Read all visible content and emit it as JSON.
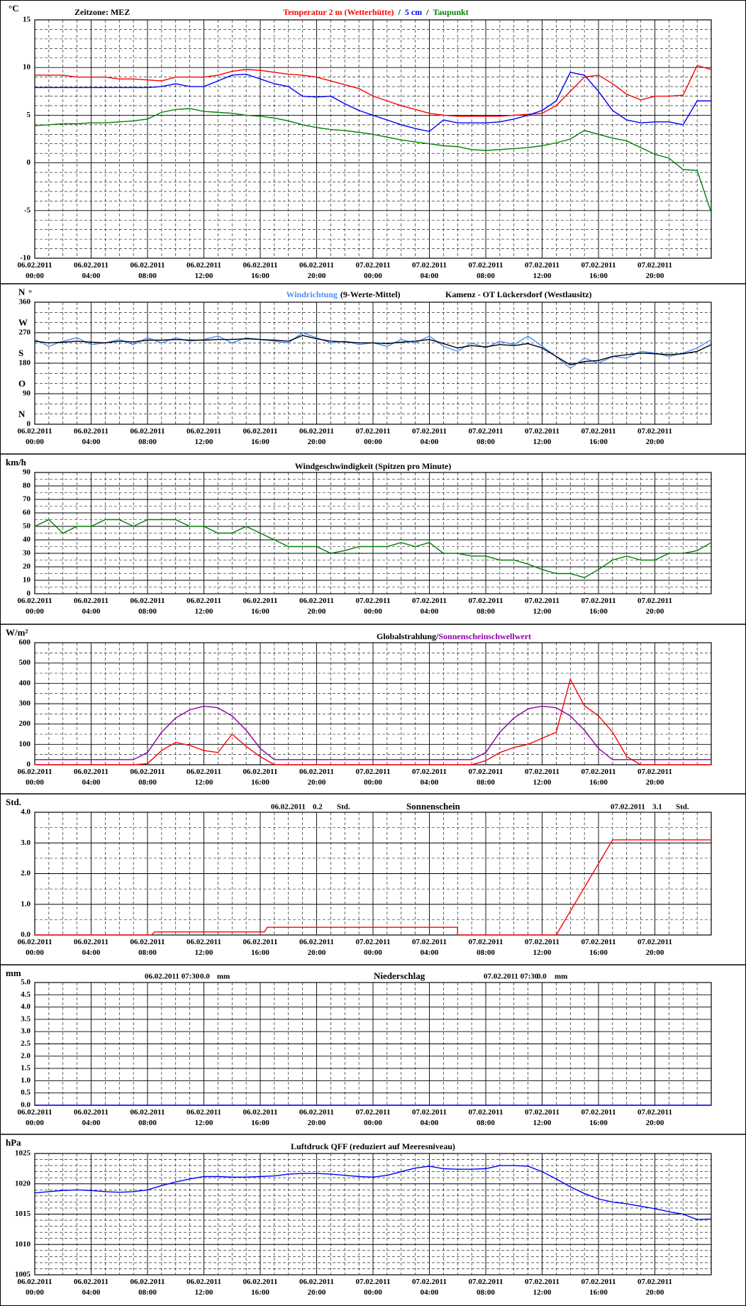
{
  "time_axis": {
    "xlim": [
      0,
      48
    ],
    "xticks": [
      {
        "value": 0,
        "label": "06.02.2011\n00:00"
      },
      {
        "value": 4,
        "label": "06.02.2011\n04:00"
      },
      {
        "value": 8,
        "label": "06.02.2011\n08:00"
      },
      {
        "value": 12,
        "label": "06.02.2011\n12:00"
      },
      {
        "value": 16,
        "label": "06.02.2011\n16:00"
      },
      {
        "value": 20,
        "label": "06.02.2011\n20:00"
      },
      {
        "value": 24,
        "label": "07.02.2011\n00:00"
      },
      {
        "value": 28,
        "label": "07.02.2011\n04:00"
      },
      {
        "value": 32,
        "label": "07.02.2011\n08:00"
      },
      {
        "value": 36,
        "label": "07.02.2011\n12:00"
      },
      {
        "value": 40,
        "label": "07.02.2011\n16:00"
      },
      {
        "value": 44,
        "label": "07.02.2011\n20:00"
      }
    ],
    "xminor": [
      1,
      2,
      3,
      5,
      6,
      7,
      9,
      10,
      11,
      13,
      14,
      15,
      17,
      18,
      19,
      21,
      22,
      23,
      25,
      26,
      27,
      29,
      30,
      31,
      33,
      34,
      35,
      37,
      38,
      39,
      41,
      42,
      43,
      45,
      46,
      47,
      48
    ]
  },
  "chart_data": [
    {
      "type": "line",
      "unit": "°C",
      "annotations": [
        "Zeitzone: MEZ"
      ],
      "separator": "/",
      "ylim": [
        -10,
        15
      ],
      "yticks": [
        -10,
        -5,
        0,
        5,
        10,
        15
      ],
      "yminor": [
        -9,
        -8,
        -7,
        -6,
        -4,
        -3,
        -2,
        -1,
        1,
        2,
        3,
        4,
        6,
        7,
        8,
        9,
        11,
        12,
        13,
        14
      ],
      "x": [
        0,
        1,
        2,
        3,
        4,
        5,
        6,
        7,
        8,
        9,
        10,
        11,
        12,
        13,
        14,
        15,
        16,
        17,
        18,
        19,
        20,
        21,
        22,
        23,
        24,
        25,
        26,
        27,
        28,
        29,
        30,
        31,
        32,
        33,
        34,
        35,
        36,
        37,
        38,
        39,
        40,
        41,
        42,
        43,
        44,
        45,
        46,
        47,
        48
      ],
      "series": [
        {
          "name": "Temperatur 2 m (Wetterhütte)",
          "color": "#ff0000",
          "values": [
            9.2,
            9.2,
            9.2,
            9.0,
            9.0,
            9.0,
            8.8,
            8.8,
            8.7,
            8.6,
            9.0,
            9.0,
            9.0,
            9.2,
            9.6,
            9.8,
            9.7,
            9.5,
            9.3,
            9.2,
            9.0,
            8.6,
            8.2,
            7.8,
            7.0,
            6.5,
            6.0,
            5.6,
            5.2,
            5.0,
            4.9,
            4.9,
            4.9,
            4.9,
            5.0,
            5.1,
            5.2,
            6.0,
            7.5,
            9.0,
            9.2,
            8.3,
            7.2,
            6.6,
            7.0,
            7.0,
            7.1,
            10.2,
            9.8
          ]
        },
        {
          "name": "5 cm",
          "color": "#0000ff",
          "values": [
            7.9,
            7.9,
            7.9,
            7.9,
            7.9,
            7.9,
            7.9,
            7.9,
            7.9,
            8.0,
            8.3,
            8.0,
            8.0,
            8.6,
            9.2,
            9.3,
            8.8,
            8.3,
            8.0,
            7.0,
            6.9,
            7.0,
            6.2,
            5.5,
            5.0,
            4.5,
            4.0,
            3.6,
            3.3,
            4.5,
            4.2,
            4.2,
            4.2,
            4.3,
            4.6,
            5.0,
            5.5,
            6.5,
            9.5,
            9.2,
            7.5,
            5.5,
            4.5,
            4.2,
            4.3,
            4.3,
            4.0,
            6.5,
            6.5
          ]
        },
        {
          "name": "Taupunkt",
          "color": "#008000",
          "values": [
            3.9,
            4.0,
            4.1,
            4.1,
            4.2,
            4.2,
            4.3,
            4.4,
            4.6,
            5.3,
            5.6,
            5.7,
            5.4,
            5.3,
            5.2,
            5.0,
            4.9,
            4.7,
            4.4,
            4.0,
            3.7,
            3.5,
            3.4,
            3.2,
            3.0,
            2.7,
            2.4,
            2.2,
            2.0,
            1.8,
            1.7,
            1.4,
            1.3,
            1.4,
            1.5,
            1.6,
            1.8,
            2.1,
            2.5,
            3.4,
            3.0,
            2.6,
            2.3,
            1.6,
            0.9,
            0.5,
            -0.7,
            -0.8,
            -5.2
          ]
        }
      ]
    },
    {
      "type": "line",
      "unit": "°",
      "annotations": [
        "Kamenz - OT Lückersdorf (Westlausitz)"
      ],
      "ylim": [
        0,
        360
      ],
      "yticks": [
        0,
        90,
        180,
        270,
        360
      ],
      "yminor": [
        30,
        60,
        120,
        150,
        210,
        240,
        300,
        330
      ],
      "compass": [
        {
          "value": 0,
          "label": "N"
        },
        {
          "value": 90,
          "label": "O"
        },
        {
          "value": 180,
          "label": "S"
        },
        {
          "value": 270,
          "label": "W"
        },
        {
          "value": 360,
          "label": "N"
        }
      ],
      "x": [
        0,
        1,
        2,
        3,
        4,
        5,
        6,
        7,
        8,
        9,
        10,
        11,
        12,
        13,
        14,
        15,
        16,
        17,
        18,
        19,
        20,
        21,
        22,
        23,
        24,
        25,
        26,
        27,
        28,
        29,
        30,
        31,
        32,
        33,
        34,
        35,
        36,
        37,
        38,
        39,
        40,
        41,
        42,
        43,
        44,
        45,
        46,
        47,
        48
      ],
      "series": [
        {
          "name": "Windrichtung",
          "color": "#4a8cff",
          "values": [
            250,
            230,
            245,
            255,
            235,
            240,
            250,
            235,
            255,
            240,
            255,
            245,
            250,
            260,
            240,
            255,
            250,
            245,
            240,
            270,
            255,
            240,
            245,
            235,
            240,
            230,
            250,
            240,
            260,
            230,
            215,
            240,
            225,
            245,
            235,
            260,
            230,
            200,
            165,
            195,
            180,
            200,
            195,
            215,
            210,
            200,
            210,
            225,
            250
          ]
        },
        {
          "name": "(9-Werte-Mittel)",
          "color": "#000000",
          "values": [
            245,
            240,
            242,
            245,
            242,
            240,
            245,
            243,
            248,
            248,
            250,
            248,
            248,
            250,
            250,
            252,
            250,
            248,
            245,
            262,
            252,
            245,
            243,
            240,
            240,
            238,
            242,
            245,
            250,
            238,
            225,
            232,
            228,
            235,
            232,
            238,
            225,
            200,
            175,
            185,
            188,
            200,
            205,
            210,
            208,
            205,
            208,
            215,
            235
          ]
        }
      ]
    },
    {
      "type": "line",
      "unit": "km/h",
      "title": "Windgeschwindigkeit (Spitzen pro Minute)",
      "ylim": [
        0,
        90
      ],
      "yticks": [
        0,
        10,
        20,
        30,
        40,
        50,
        60,
        70,
        80,
        90
      ],
      "yminor": [
        5,
        15,
        25,
        35,
        45,
        55,
        65,
        75,
        85
      ],
      "x": [
        0,
        1,
        2,
        3,
        4,
        5,
        6,
        7,
        8,
        9,
        10,
        11,
        12,
        13,
        14,
        15,
        16,
        17,
        18,
        19,
        20,
        21,
        22,
        23,
        24,
        25,
        26,
        27,
        28,
        29,
        30,
        31,
        32,
        33,
        34,
        35,
        36,
        37,
        38,
        39,
        40,
        41,
        42,
        43,
        44,
        45,
        46,
        47,
        48
      ],
      "series": [
        {
          "color": "#008000",
          "values": [
            50,
            55,
            45,
            50,
            50,
            55,
            55,
            50,
            55,
            55,
            55,
            50,
            50,
            45,
            45,
            50,
            45,
            40,
            35,
            35,
            35,
            30,
            32,
            35,
            35,
            35,
            38,
            35,
            38,
            30,
            30,
            28,
            28,
            25,
            25,
            22,
            18,
            15,
            15,
            12,
            18,
            25,
            28,
            25,
            25,
            30,
            30,
            32,
            38
          ]
        }
      ]
    },
    {
      "type": "line",
      "unit": "W/m²",
      "title": "Globalstrahlung/",
      "ylim": [
        0,
        600
      ],
      "yticks": [
        0,
        100,
        200,
        300,
        400,
        500,
        600
      ],
      "yminor": [
        50,
        150,
        250,
        350,
        450,
        550
      ],
      "x": [
        0,
        1,
        2,
        3,
        4,
        5,
        6,
        7,
        8,
        9,
        10,
        11,
        12,
        13,
        14,
        15,
        16,
        17,
        18,
        19,
        20,
        21,
        22,
        23,
        24,
        25,
        26,
        27,
        28,
        29,
        30,
        31,
        32,
        33,
        34,
        35,
        36,
        37,
        38,
        39,
        40,
        41,
        42,
        43,
        44,
        45,
        46,
        47,
        48
      ],
      "series": [
        {
          "color": "#ff0000",
          "values": [
            0,
            0,
            0,
            0,
            0,
            0,
            0,
            0,
            5,
            70,
            110,
            95,
            70,
            60,
            150,
            90,
            40,
            0,
            0,
            0,
            0,
            0,
            0,
            0,
            0,
            0,
            0,
            0,
            0,
            0,
            0,
            0,
            20,
            60,
            85,
            100,
            130,
            160,
            420,
            290,
            240,
            160,
            40,
            0,
            0,
            0,
            0,
            0,
            0
          ]
        },
        {
          "name": "Sonnenscheinschwellwert",
          "color": "#8b00a8",
          "values": [
            25,
            25,
            25,
            25,
            25,
            25,
            25,
            25,
            60,
            160,
            230,
            270,
            288,
            280,
            240,
            170,
            80,
            25,
            25,
            25,
            25,
            25,
            25,
            25,
            25,
            25,
            25,
            25,
            25,
            25,
            25,
            25,
            60,
            160,
            230,
            275,
            288,
            280,
            240,
            170,
            80,
            25,
            25,
            25,
            25,
            25,
            25,
            25,
            25
          ]
        }
      ]
    },
    {
      "type": "line",
      "unit": "Std.",
      "annotations": [
        "06.02.2011",
        "0.2",
        "Std.",
        "Sonnenschein",
        "07.02.2011",
        "3.1",
        "Std."
      ],
      "ylim": [
        0,
        4
      ],
      "yticks": [
        {
          "value": 0,
          "label": "0.0"
        },
        {
          "value": 1,
          "label": "1.0"
        },
        {
          "value": 2,
          "label": "2.0"
        },
        {
          "value": 3,
          "label": "3.0"
        },
        {
          "value": 4,
          "label": "4.0"
        }
      ],
      "yminor": [
        0.5,
        1.5,
        2.5,
        3.5
      ],
      "x": [
        0,
        8.3,
        8.5,
        16.3,
        16.5,
        30,
        30,
        37,
        41,
        48
      ],
      "series": [
        {
          "color": "#ff0000",
          "values": [
            0,
            0,
            0.1,
            0.1,
            0.25,
            0.25,
            0,
            0,
            3.1,
            3.1
          ]
        }
      ]
    },
    {
      "type": "line",
      "unit": "mm",
      "annotations": [
        "06.02.2011 07:30",
        "0.0",
        "mm",
        "Niederschlag",
        "07.02.2011 07:30",
        "0.0",
        "mm"
      ],
      "ylim": [
        0,
        5
      ],
      "yticks": [
        {
          "value": 0,
          "label": "0.0"
        },
        {
          "value": 0.5,
          "label": "0.5"
        },
        {
          "value": 1,
          "label": "1.0"
        },
        {
          "value": 1.5,
          "label": "1.5"
        },
        {
          "value": 2,
          "label": "2.0"
        },
        {
          "value": 2.5,
          "label": "2.5"
        },
        {
          "value": 3,
          "label": "3.0"
        },
        {
          "value": 3.5,
          "label": "3.5"
        },
        {
          "value": 4,
          "label": "4.0"
        },
        {
          "value": 4.5,
          "label": "4.5"
        },
        {
          "value": 5,
          "label": "5.0"
        }
      ],
      "yminor": [],
      "x": [
        0,
        48
      ],
      "series": [
        {
          "color": "#0000ff",
          "values": [
            0,
            0
          ]
        }
      ]
    },
    {
      "type": "line",
      "unit": "hPa",
      "title": "Luftdruck QFF (reduziert auf Meeresniveau)",
      "ylim": [
        1005,
        1025
      ],
      "yticks": [
        1005,
        1010,
        1015,
        1020,
        1025
      ],
      "yminor": [
        1006,
        1007,
        1008,
        1009,
        1011,
        1012,
        1013,
        1014,
        1016,
        1017,
        1018,
        1019,
        1021,
        1022,
        1023,
        1024
      ],
      "x": [
        0,
        1,
        2,
        3,
        4,
        5,
        6,
        7,
        8,
        9,
        10,
        11,
        12,
        13,
        14,
        15,
        16,
        17,
        18,
        19,
        20,
        21,
        22,
        23,
        24,
        25,
        26,
        27,
        28,
        29,
        30,
        31,
        32,
        33,
        34,
        35,
        36,
        37,
        38,
        39,
        40,
        41,
        42,
        43,
        44,
        45,
        46,
        47,
        48
      ],
      "series": [
        {
          "color": "#0000ff",
          "values": [
            1018.5,
            1018.7,
            1018.9,
            1019,
            1018.9,
            1018.7,
            1018.6,
            1018.7,
            1019,
            1019.7,
            1020.3,
            1020.8,
            1021.2,
            1021.2,
            1021.1,
            1021.1,
            1021.2,
            1021.3,
            1021.6,
            1021.7,
            1021.7,
            1021.6,
            1021.4,
            1021.2,
            1021.1,
            1021.4,
            1022,
            1022.6,
            1022.9,
            1022.5,
            1022.4,
            1022.4,
            1022.5,
            1023,
            1023,
            1022.9,
            1022,
            1020.8,
            1019.5,
            1018.4,
            1017.5,
            1017,
            1016.7,
            1016.3,
            1015.9,
            1015.4,
            1015,
            1014.1,
            1014.2
          ]
        }
      ]
    }
  ]
}
